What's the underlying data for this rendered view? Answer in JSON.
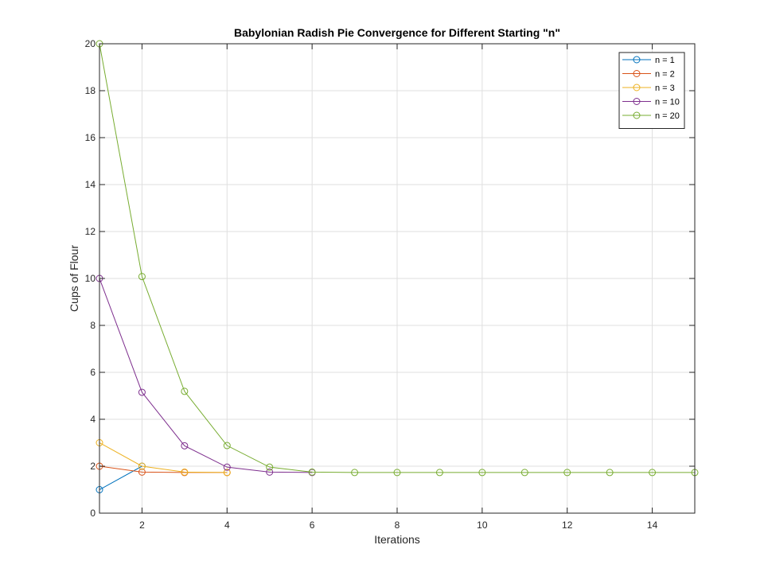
{
  "chart_data": {
    "type": "line",
    "title": "Babylonian Radish Pie Convergence for Different Starting \"n\"",
    "xlabel": "Iterations",
    "ylabel": "Cups of Flour",
    "xlim": [
      1,
      15
    ],
    "ylim": [
      0,
      20
    ],
    "xticks": [
      2,
      4,
      6,
      8,
      10,
      12,
      14
    ],
    "yticks": [
      0,
      2,
      4,
      6,
      8,
      10,
      12,
      14,
      16,
      18,
      20
    ],
    "grid": true,
    "legend_position": "top-right",
    "marker": "open-circle",
    "series": [
      {
        "name": "n = 1",
        "color": "#0072BD",
        "x": [
          1,
          2
        ],
        "y": [
          1,
          2
        ]
      },
      {
        "name": "n = 2",
        "color": "#D95319",
        "x": [
          1,
          2,
          3,
          4
        ],
        "y": [
          2,
          1.75,
          1.732,
          1.732
        ]
      },
      {
        "name": "n = 3",
        "color": "#EDB120",
        "x": [
          1,
          2,
          3,
          4
        ],
        "y": [
          3,
          2,
          1.75,
          1.732
        ]
      },
      {
        "name": "n = 10",
        "color": "#7E2F8E",
        "x": [
          1,
          2,
          3,
          4,
          5,
          6
        ],
        "y": [
          10,
          5.15,
          2.87,
          1.96,
          1.75,
          1.732
        ]
      },
      {
        "name": "n = 20",
        "color": "#77AC30",
        "x": [
          1,
          2,
          3,
          4,
          5,
          6,
          7,
          8,
          9,
          10,
          11,
          12,
          13,
          14,
          15
        ],
        "y": [
          20,
          10.08,
          5.19,
          2.88,
          1.96,
          1.75,
          1.732,
          1.732,
          1.732,
          1.732,
          1.732,
          1.732,
          1.732,
          1.732,
          1.732
        ]
      }
    ]
  }
}
